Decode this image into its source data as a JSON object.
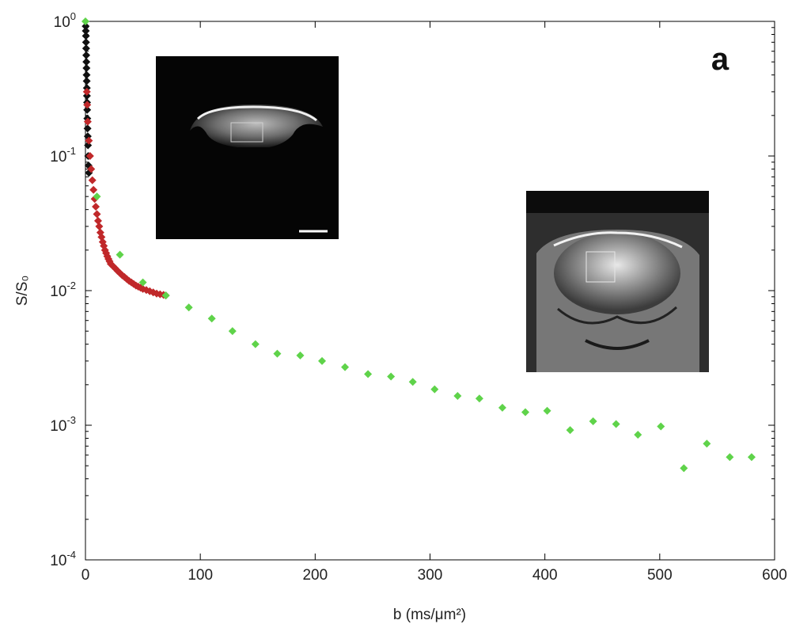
{
  "chart_data": {
    "type": "scatter",
    "panel_label": "a",
    "xlabel": "b (ms/μm²)",
    "ylabel": "S/S₀",
    "xlim": [
      0,
      600
    ],
    "ylim": [
      0.0001,
      1
    ],
    "yscale": "log",
    "grid": false,
    "xticks": [
      0,
      100,
      200,
      300,
      400,
      500,
      600
    ],
    "yticks": [
      {
        "value": 0.0001,
        "base": "10",
        "exp": "-4"
      },
      {
        "value": 0.001,
        "base": "10",
        "exp": "-3"
      },
      {
        "value": 0.01,
        "base": "10",
        "exp": "-2"
      },
      {
        "value": 0.1,
        "base": "10",
        "exp": "-1"
      },
      {
        "value": 1,
        "base": "10",
        "exp": "0"
      }
    ],
    "series": [
      {
        "color": "#111111",
        "marker": "diamond",
        "points": [
          [
            0.2,
            0.92
          ],
          [
            0.3,
            0.85
          ],
          [
            0.4,
            0.78
          ],
          [
            0.5,
            0.7
          ],
          [
            0.6,
            0.63
          ],
          [
            0.7,
            0.56
          ],
          [
            0.8,
            0.5
          ],
          [
            0.9,
            0.45
          ],
          [
            1.0,
            0.4
          ],
          [
            1.1,
            0.36
          ],
          [
            1.2,
            0.32
          ],
          [
            1.3,
            0.28
          ],
          [
            1.4,
            0.25
          ],
          [
            1.5,
            0.22
          ],
          [
            1.6,
            0.19
          ],
          [
            1.8,
            0.16
          ],
          [
            2.0,
            0.14
          ],
          [
            2.2,
            0.12
          ],
          [
            2.4,
            0.1
          ],
          [
            2.7,
            0.085
          ],
          [
            3.0,
            0.075
          ]
        ]
      },
      {
        "color": "#c0282a",
        "marker": "diamond",
        "points": [
          [
            1.2,
            0.3
          ],
          [
            1.5,
            0.24
          ],
          [
            2.0,
            0.18
          ],
          [
            3,
            0.13
          ],
          [
            4,
            0.1
          ],
          [
            5,
            0.08
          ],
          [
            6,
            0.066
          ],
          [
            7,
            0.056
          ],
          [
            8,
            0.048
          ],
          [
            9,
            0.042
          ],
          [
            10,
            0.037
          ],
          [
            11,
            0.033
          ],
          [
            12,
            0.03
          ],
          [
            13,
            0.027
          ],
          [
            14,
            0.025
          ],
          [
            15,
            0.023
          ],
          [
            16,
            0.0215
          ],
          [
            17,
            0.02
          ],
          [
            18,
            0.019
          ],
          [
            19,
            0.018
          ],
          [
            20,
            0.0172
          ],
          [
            21,
            0.0165
          ],
          [
            22,
            0.0158
          ],
          [
            24,
            0.0152
          ],
          [
            26,
            0.0146
          ],
          [
            28,
            0.014
          ],
          [
            30,
            0.0135
          ],
          [
            32,
            0.013
          ],
          [
            34,
            0.0126
          ],
          [
            36,
            0.0122
          ],
          [
            38,
            0.0118
          ],
          [
            40,
            0.0115
          ],
          [
            42,
            0.0112
          ],
          [
            44,
            0.0109
          ],
          [
            46,
            0.0107
          ],
          [
            48,
            0.0105
          ],
          [
            50,
            0.0103
          ],
          [
            53,
            0.0101
          ],
          [
            56,
            0.0099
          ],
          [
            59,
            0.0097
          ],
          [
            62,
            0.0095
          ],
          [
            65,
            0.0094
          ],
          [
            68,
            0.0093
          ],
          [
            70,
            0.0092
          ]
        ]
      },
      {
        "color": "#5fd34a",
        "marker": "diamond",
        "points": [
          [
            0,
            1.0
          ],
          [
            10,
            0.05
          ],
          [
            30,
            0.0185
          ],
          [
            50,
            0.0115
          ],
          [
            70,
            0.0092
          ],
          [
            90,
            0.0075
          ],
          [
            110,
            0.0062
          ],
          [
            128,
            0.005
          ],
          [
            148,
            0.004
          ],
          [
            167,
            0.0034
          ],
          [
            187,
            0.0033
          ],
          [
            206,
            0.003
          ],
          [
            226,
            0.0027
          ],
          [
            246,
            0.0024
          ],
          [
            266,
            0.0023
          ],
          [
            285,
            0.0021
          ],
          [
            304,
            0.00185
          ],
          [
            324,
            0.00165
          ],
          [
            343,
            0.00158
          ],
          [
            363,
            0.00135
          ],
          [
            383,
            0.00125
          ],
          [
            402,
            0.00128
          ],
          [
            422,
            0.00092
          ],
          [
            442,
            0.00107
          ],
          [
            462,
            0.00102
          ],
          [
            481,
            0.00085
          ],
          [
            501,
            0.00098
          ],
          [
            521,
            0.00048
          ],
          [
            541,
            0.00073
          ],
          [
            561,
            0.00058
          ],
          [
            580,
            0.00058
          ]
        ]
      }
    ],
    "insets": [
      {
        "description": "dark MRI image with white scale bar and ROI box",
        "position": "upper-left"
      },
      {
        "description": "grayscale MRI image with ROI box",
        "position": "right"
      }
    ]
  }
}
